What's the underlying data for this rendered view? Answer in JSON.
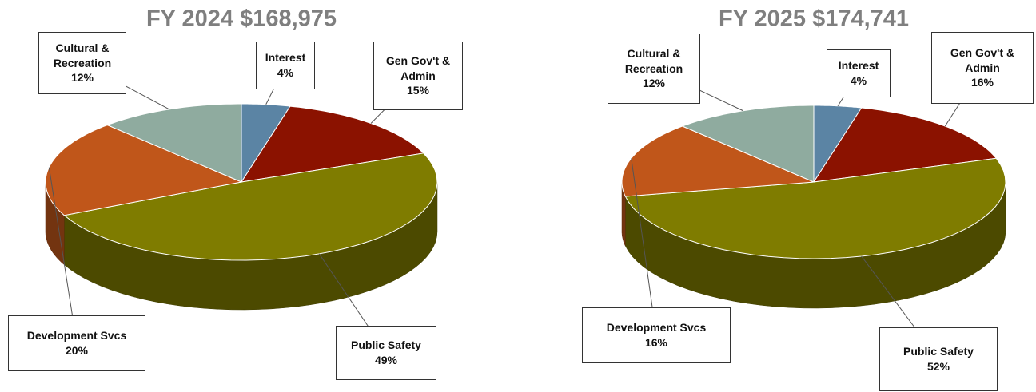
{
  "chart_data": [
    {
      "type": "pie",
      "title": "FY 2024 $168,975",
      "categories": [
        "Interest",
        "Gen Gov't & Admin",
        "Public Safety",
        "Development Svcs",
        "Cultural & Recreation"
      ],
      "values": [
        4,
        15,
        49,
        20,
        12
      ],
      "value_labels": [
        "4%",
        "15%",
        "49%",
        "20%",
        "12%"
      ],
      "colors": [
        "#5b84a4",
        "#8b1200",
        "#7f7c00",
        "#c0561a",
        "#8fab9f"
      ]
    },
    {
      "type": "pie",
      "title": "FY 2025 $174,741",
      "categories": [
        "Interest",
        "Gen Gov't & Admin",
        "Public Safety",
        "Development Svcs",
        "Cultural & Recreation"
      ],
      "values": [
        4,
        16,
        52,
        16,
        12
      ],
      "value_labels": [
        "4%",
        "16%",
        "52%",
        "16%",
        "12%"
      ],
      "colors": [
        "#5b84a4",
        "#8b1200",
        "#7f7c00",
        "#c0561a",
        "#8fab9f"
      ]
    }
  ]
}
